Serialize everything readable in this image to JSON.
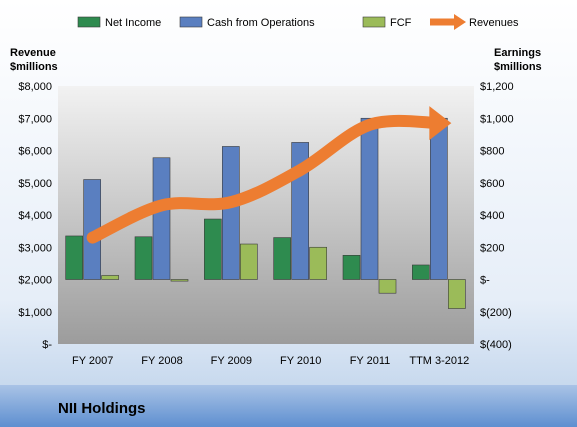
{
  "chart_data": {
    "type": "bar",
    "title": "NII Holdings",
    "categories": [
      "FY 2007",
      "FY 2008",
      "FY 2009",
      "FY 2010",
      "FY 2011",
      "TTM 3-2012"
    ],
    "left_axis": {
      "title_line1": "Revenue",
      "title_line2": "$millions",
      "ylim": [
        0,
        8000
      ],
      "ticks": [
        0,
        1000,
        2000,
        3000,
        4000,
        5000,
        6000,
        7000,
        8000
      ],
      "tick_labels": [
        "$-",
        "$1,000",
        "$2,000",
        "$3,000",
        "$4,000",
        "$5,000",
        "$6,000",
        "$7,000",
        "$8,000"
      ]
    },
    "right_axis": {
      "title_line1": "Earnings",
      "title_line2": "$millions",
      "ylim": [
        -400,
        1200
      ],
      "ticks": [
        -400,
        -200,
        0,
        200,
        400,
        600,
        800,
        1000,
        1200
      ],
      "tick_labels": [
        "$(400)",
        "$(200)",
        "$-",
        "$200",
        "$400",
        "$600",
        "$800",
        "$1,000",
        "$1,200"
      ]
    },
    "series": [
      {
        "name": "Net Income",
        "axis": "right",
        "kind": "bar",
        "color": "#2e8b4f",
        "values": [
          270,
          265,
          375,
          260,
          150,
          90
        ]
      },
      {
        "name": "Cash from Operations",
        "axis": "right",
        "kind": "bar",
        "color": "#5a7fc0",
        "values": [
          620,
          755,
          825,
          850,
          1000,
          1000
        ]
      },
      {
        "name": "FCF",
        "axis": "right",
        "kind": "bar",
        "color": "#9bbb59",
        "values": [
          25,
          -10,
          220,
          200,
          -85,
          -180
        ]
      },
      {
        "name": "Revenues",
        "axis": "left",
        "kind": "line",
        "color": "#ed7d31",
        "values": [
          3300,
          4300,
          4400,
          5400,
          6800,
          6850
        ]
      }
    ],
    "legend_position": "top",
    "grid": false
  }
}
